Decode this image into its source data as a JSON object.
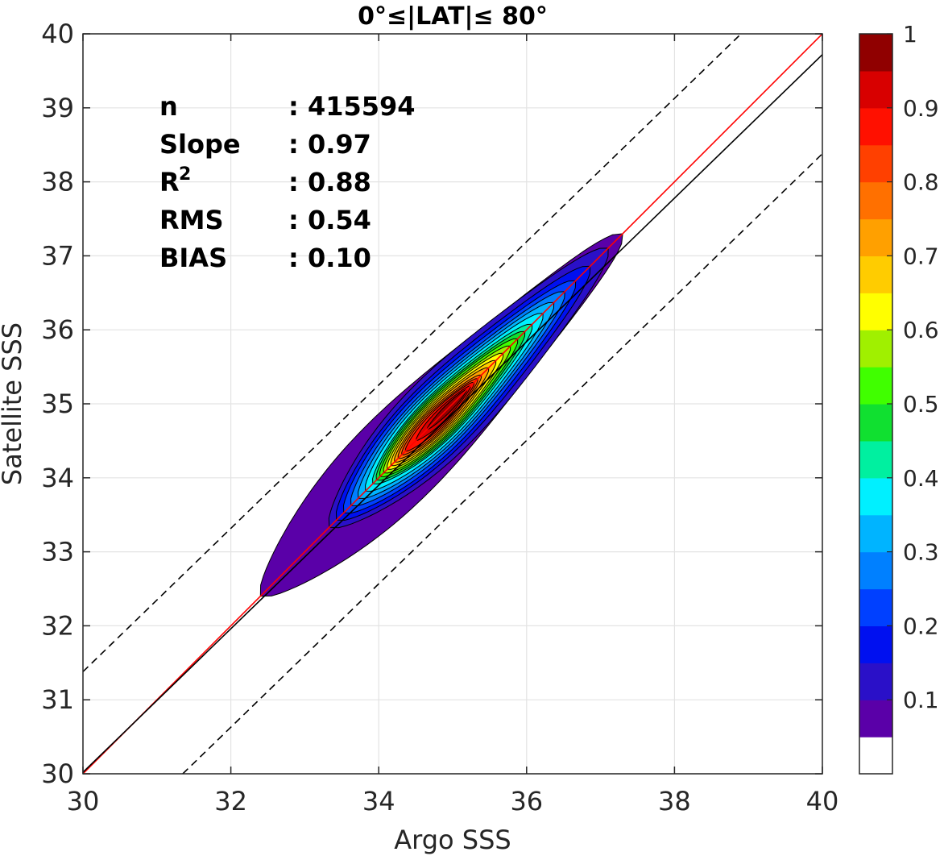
{
  "chart_data": {
    "type": "contour",
    "title": "0°≤|LAT|≤ 80°",
    "xlabel": "Argo SSS",
    "ylabel": "Satellite SSS",
    "xlim": [
      30,
      40
    ],
    "ylim": [
      30,
      40
    ],
    "xticks": [
      "30",
      "32",
      "34",
      "36",
      "38",
      "40"
    ],
    "yticks": [
      "30",
      "31",
      "32",
      "33",
      "34",
      "35",
      "36",
      "37",
      "38",
      "39",
      "40"
    ],
    "grid": true,
    "stats": [
      {
        "label": "n",
        "sup": "",
        "value": ": 415594"
      },
      {
        "label": "Slope",
        "sup": "",
        "value": ": 0.97"
      },
      {
        "label": "R",
        "sup": "2",
        "value": ": 0.88"
      },
      {
        "label": "RMS",
        "sup": "",
        "value": ": 0.54"
      },
      {
        "label": "BIAS",
        "sup": "",
        "value": ": 0.10"
      }
    ],
    "lines": [
      {
        "name": "one-to-one",
        "color": "#ff0000",
        "style": "solid",
        "points": [
          [
            30,
            30
          ],
          [
            40,
            40
          ]
        ]
      },
      {
        "name": "regression",
        "color": "#000000",
        "style": "solid",
        "points": [
          [
            30,
            30.02
          ],
          [
            40,
            39.72
          ]
        ]
      },
      {
        "name": "upper-bound",
        "color": "#000000",
        "style": "dashed",
        "points": [
          [
            30,
            31.38
          ],
          [
            38.9,
            40
          ]
        ]
      },
      {
        "name": "lower-bound",
        "color": "#000000",
        "style": "dashed",
        "points": [
          [
            31.35,
            30
          ],
          [
            40,
            38.38
          ]
        ]
      }
    ],
    "density_axis": {
      "t0": [
        32.4,
        32.4
      ],
      "t1": [
        37.3,
        37.3
      ]
    },
    "contour_levels": [
      {
        "level": 0.05,
        "t_start": 0.0,
        "t_end": 1.0,
        "halfwidth": 0.58,
        "bulge": 0.18
      },
      {
        "level": 0.1,
        "t_start": 0.19,
        "t_end": 0.96,
        "halfwidth": 0.52,
        "bulge": 0.12
      },
      {
        "level": 0.15,
        "t_start": 0.21,
        "t_end": 0.91,
        "halfwidth": 0.46,
        "bulge": 0.1
      },
      {
        "level": 0.2,
        "t_start": 0.23,
        "t_end": 0.87,
        "halfwidth": 0.42,
        "bulge": 0.09
      },
      {
        "level": 0.25,
        "t_start": 0.25,
        "t_end": 0.84,
        "halfwidth": 0.38,
        "bulge": 0.08
      },
      {
        "level": 0.3,
        "t_start": 0.27,
        "t_end": 0.81,
        "halfwidth": 0.35,
        "bulge": 0.07
      },
      {
        "level": 0.35,
        "t_start": 0.29,
        "t_end": 0.78,
        "halfwidth": 0.32,
        "bulge": 0.06
      },
      {
        "level": 0.4,
        "t_start": 0.31,
        "t_end": 0.75,
        "halfwidth": 0.29,
        "bulge": 0.05
      },
      {
        "level": 0.45,
        "t_start": 0.32,
        "t_end": 0.73,
        "halfwidth": 0.27,
        "bulge": 0.05
      },
      {
        "level": 0.5,
        "t_start": 0.33,
        "t_end": 0.71,
        "halfwidth": 0.25,
        "bulge": 0.04
      },
      {
        "level": 0.55,
        "t_start": 0.34,
        "t_end": 0.69,
        "halfwidth": 0.23,
        "bulge": 0.04
      },
      {
        "level": 0.6,
        "t_start": 0.35,
        "t_end": 0.67,
        "halfwidth": 0.21,
        "bulge": 0.03
      },
      {
        "level": 0.65,
        "t_start": 0.36,
        "t_end": 0.65,
        "halfwidth": 0.19,
        "bulge": 0.03
      },
      {
        "level": 0.7,
        "t_start": 0.37,
        "t_end": 0.63,
        "halfwidth": 0.17,
        "bulge": 0.02
      },
      {
        "level": 0.75,
        "t_start": 0.38,
        "t_end": 0.61,
        "halfwidth": 0.15,
        "bulge": 0.02
      },
      {
        "level": 0.8,
        "t_start": 0.39,
        "t_end": 0.6,
        "halfwidth": 0.13,
        "bulge": 0.02
      },
      {
        "level": 0.85,
        "t_start": 0.4,
        "t_end": 0.59,
        "halfwidth": 0.11,
        "bulge": 0.01
      },
      {
        "level": 0.9,
        "t_start": 0.43,
        "t_end": 0.58,
        "halfwidth": 0.08,
        "bulge": 0.01
      },
      {
        "level": 0.95,
        "t_start": 0.46,
        "t_end": 0.57,
        "halfwidth": 0.05,
        "bulge": 0.0
      }
    ],
    "colorbar": {
      "min": 0,
      "max": 1,
      "tick_labels": [
        "0.1",
        "0.2",
        "0.3",
        "0.4",
        "0.5",
        "0.6",
        "0.7",
        "0.8",
        "0.9",
        "1"
      ],
      "tick_values": [
        0.1,
        0.2,
        0.3,
        0.4,
        0.5,
        0.6,
        0.7,
        0.8,
        0.9,
        1.0
      ],
      "colors": [
        "#ffffff",
        "#5a00a8",
        "#2a10c8",
        "#0010f0",
        "#0040ff",
        "#0080ff",
        "#00b4ff",
        "#00f0ff",
        "#00f0a0",
        "#10e030",
        "#40ff00",
        "#a0f000",
        "#ffff00",
        "#ffcc00",
        "#ffa000",
        "#ff7000",
        "#ff4000",
        "#ff1000",
        "#d80000",
        "#900000"
      ]
    }
  }
}
